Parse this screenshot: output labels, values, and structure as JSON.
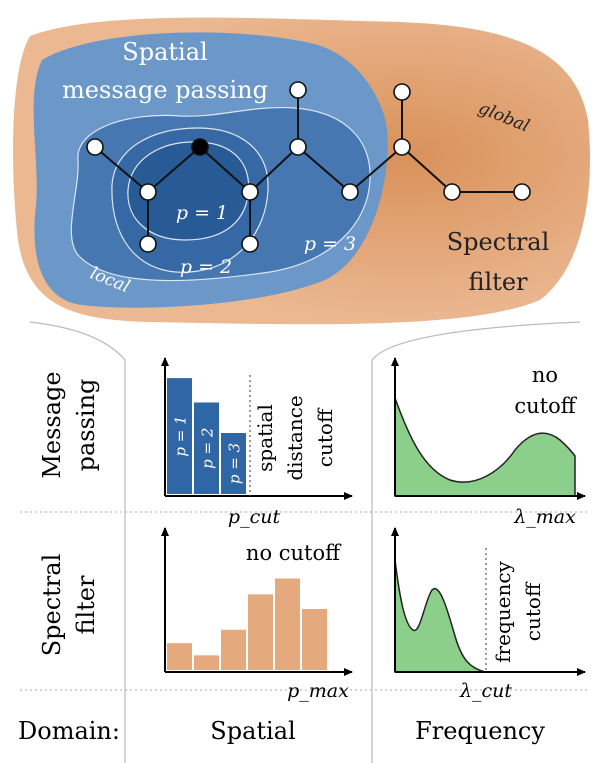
{
  "regions": {
    "spatial": "Spatial",
    "message_passing": "message passing",
    "global": "global",
    "local": "local",
    "spectral": "Spectral",
    "filter": "filter",
    "hop_labels": [
      "p = 1",
      "p = 2",
      "p = 3"
    ]
  },
  "row_labels": {
    "message_passing": [
      "Message",
      "passing"
    ],
    "spectral_filter": [
      "Spectral",
      "filter"
    ],
    "domain": "Domain:"
  },
  "column_labels": {
    "spatial": "Spatial",
    "frequency": "Frequency"
  },
  "mp_spatial": {
    "bars": [
      {
        "label": "p = 1",
        "value": 0.95
      },
      {
        "label": "p = 2",
        "value": 0.75
      },
      {
        "label": "p = 3",
        "value": 0.5
      }
    ],
    "cutoff_text": [
      "spatial",
      "distance",
      "cutoff"
    ],
    "axis_label": "p_cut"
  },
  "mp_frequency": {
    "annotation": [
      "no",
      "cutoff"
    ],
    "axis_label": "λ_max"
  },
  "sf_spatial": {
    "bars": [
      0.22,
      0.12,
      0.33,
      0.62,
      0.75,
      0.5
    ],
    "annotation": "no cutoff",
    "axis_label": "p_max"
  },
  "sf_frequency": {
    "cutoff_text": [
      "frequency",
      "cutoff"
    ],
    "axis_label": "λ_cut"
  },
  "colors": {
    "blob": "#e6b089",
    "blob_center": "#d9915a",
    "blue_outer": "#5f8fc2",
    "blue_mid": "#3f73ad",
    "blue_inner": "#2b5e99",
    "green": "#8ccf8a",
    "bar_blue": "#2f67a6",
    "bar_orange": "#e4aa7d"
  }
}
